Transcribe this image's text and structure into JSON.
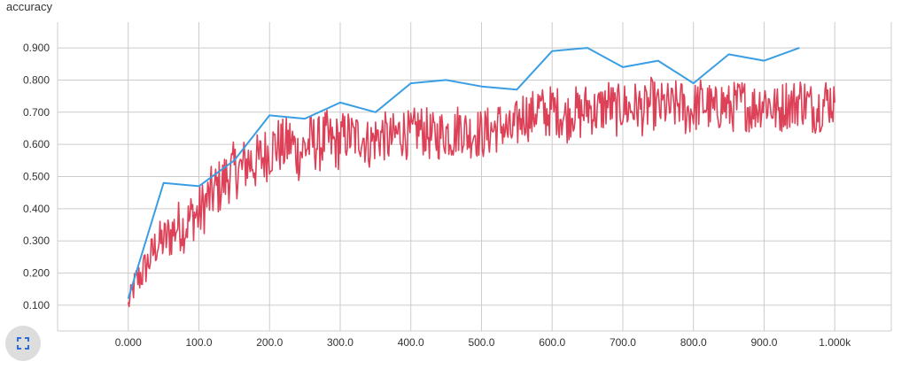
{
  "panel": {
    "title": "accuracy",
    "expand_icon": "fullscreen-expand-icon"
  },
  "colors": {
    "grid": "#cccccc",
    "tick_text": "#333333",
    "series_blue": "#3a9ee4",
    "series_red": "#dd4158",
    "button_bg": "#dddddd",
    "icon": "#2a6fd6"
  },
  "chart_data": {
    "type": "line",
    "title": "accuracy",
    "xlabel": "",
    "ylabel": "",
    "xlim": [
      -100,
      1080
    ],
    "ylim": [
      0.02,
      0.98
    ],
    "grid": true,
    "x_ticks": [
      0,
      100,
      200,
      300,
      400,
      500,
      600,
      700,
      800,
      900,
      1000
    ],
    "x_tick_labels": [
      "0.000",
      "100.0",
      "200.0",
      "300.0",
      "400.0",
      "500.0",
      "600.0",
      "700.0",
      "800.0",
      "900.0",
      "1.000k"
    ],
    "y_ticks": [
      0.1,
      0.2,
      0.3,
      0.4,
      0.5,
      0.6,
      0.7,
      0.8,
      0.9
    ],
    "y_tick_labels": [
      "0.100",
      "0.200",
      "0.300",
      "0.400",
      "0.500",
      "0.600",
      "0.700",
      "0.800",
      "0.900"
    ],
    "series": [
      {
        "color": "#3a9ee4",
        "x": [
          0,
          50,
          100,
          150,
          200,
          250,
          300,
          350,
          400,
          450,
          500,
          550,
          600,
          650,
          700,
          750,
          800,
          850,
          900,
          950
        ],
        "values": [
          0.12,
          0.48,
          0.47,
          0.55,
          0.69,
          0.68,
          0.73,
          0.7,
          0.79,
          0.8,
          0.78,
          0.77,
          0.89,
          0.9,
          0.84,
          0.86,
          0.79,
          0.88,
          0.86,
          0.9
        ]
      },
      {
        "color": "#dd4158",
        "x": [
          0,
          10,
          20,
          30,
          40,
          50,
          60,
          70,
          80,
          90,
          100,
          110,
          120,
          130,
          140,
          150,
          160,
          170,
          180,
          190,
          200,
          210,
          220,
          230,
          240,
          250,
          260,
          270,
          280,
          290,
          300,
          310,
          320,
          330,
          340,
          350,
          360,
          370,
          380,
          390,
          400,
          410,
          420,
          430,
          440,
          450,
          460,
          470,
          480,
          490,
          500,
          510,
          520,
          530,
          540,
          550,
          560,
          570,
          580,
          590,
          600,
          610,
          620,
          630,
          640,
          650,
          660,
          670,
          680,
          690,
          700,
          710,
          720,
          730,
          740,
          750,
          760,
          770,
          780,
          790,
          800,
          810,
          820,
          830,
          840,
          850,
          860,
          870,
          880,
          890,
          900,
          910,
          920,
          930,
          940,
          950,
          960,
          970,
          980,
          990,
          1000
        ],
        "values": [
          0.1,
          0.17,
          0.2,
          0.24,
          0.29,
          0.3,
          0.32,
          0.35,
          0.34,
          0.38,
          0.38,
          0.42,
          0.45,
          0.47,
          0.5,
          0.52,
          0.52,
          0.55,
          0.54,
          0.56,
          0.58,
          0.6,
          0.59,
          0.61,
          0.57,
          0.59,
          0.61,
          0.6,
          0.62,
          0.6,
          0.61,
          0.63,
          0.62,
          0.63,
          0.6,
          0.62,
          0.63,
          0.61,
          0.63,
          0.64,
          0.62,
          0.65,
          0.64,
          0.62,
          0.63,
          0.64,
          0.63,
          0.66,
          0.63,
          0.64,
          0.63,
          0.64,
          0.65,
          0.66,
          0.63,
          0.66,
          0.7,
          0.68,
          0.72,
          0.69,
          0.71,
          0.7,
          0.68,
          0.71,
          0.69,
          0.72,
          0.7,
          0.71,
          0.73,
          0.7,
          0.72,
          0.71,
          0.72,
          0.7,
          0.73,
          0.71,
          0.72,
          0.71,
          0.73,
          0.7,
          0.71,
          0.73,
          0.72,
          0.7,
          0.73,
          0.71,
          0.72,
          0.73,
          0.71,
          0.72,
          0.74,
          0.72,
          0.7,
          0.73,
          0.72,
          0.74,
          0.73,
          0.71,
          0.72,
          0.74,
          0.73
        ],
        "band": [
          0.03,
          0.05,
          0.06,
          0.06,
          0.07,
          0.07,
          0.08,
          0.08,
          0.08,
          0.08,
          0.09,
          0.09,
          0.09,
          0.09,
          0.09,
          0.09,
          0.09,
          0.09,
          0.09,
          0.09,
          0.09,
          0.09,
          0.09,
          0.09,
          0.09,
          0.09,
          0.09,
          0.09,
          0.09,
          0.09,
          0.09,
          0.08,
          0.08,
          0.08,
          0.08,
          0.08,
          0.08,
          0.08,
          0.08,
          0.08,
          0.08,
          0.08,
          0.08,
          0.08,
          0.08,
          0.08,
          0.08,
          0.08,
          0.08,
          0.08,
          0.08,
          0.08,
          0.08,
          0.08,
          0.08,
          0.08,
          0.08,
          0.08,
          0.08,
          0.08,
          0.08,
          0.08,
          0.08,
          0.08,
          0.08,
          0.08,
          0.08,
          0.08,
          0.08,
          0.08,
          0.08,
          0.08,
          0.08,
          0.08,
          0.08,
          0.08,
          0.08,
          0.08,
          0.08,
          0.08,
          0.08,
          0.08,
          0.08,
          0.08,
          0.08,
          0.08,
          0.08,
          0.08,
          0.08,
          0.08,
          0.08,
          0.08,
          0.08,
          0.08,
          0.08,
          0.08,
          0.08,
          0.08,
          0.08,
          0.08,
          0.08
        ]
      }
    ]
  }
}
